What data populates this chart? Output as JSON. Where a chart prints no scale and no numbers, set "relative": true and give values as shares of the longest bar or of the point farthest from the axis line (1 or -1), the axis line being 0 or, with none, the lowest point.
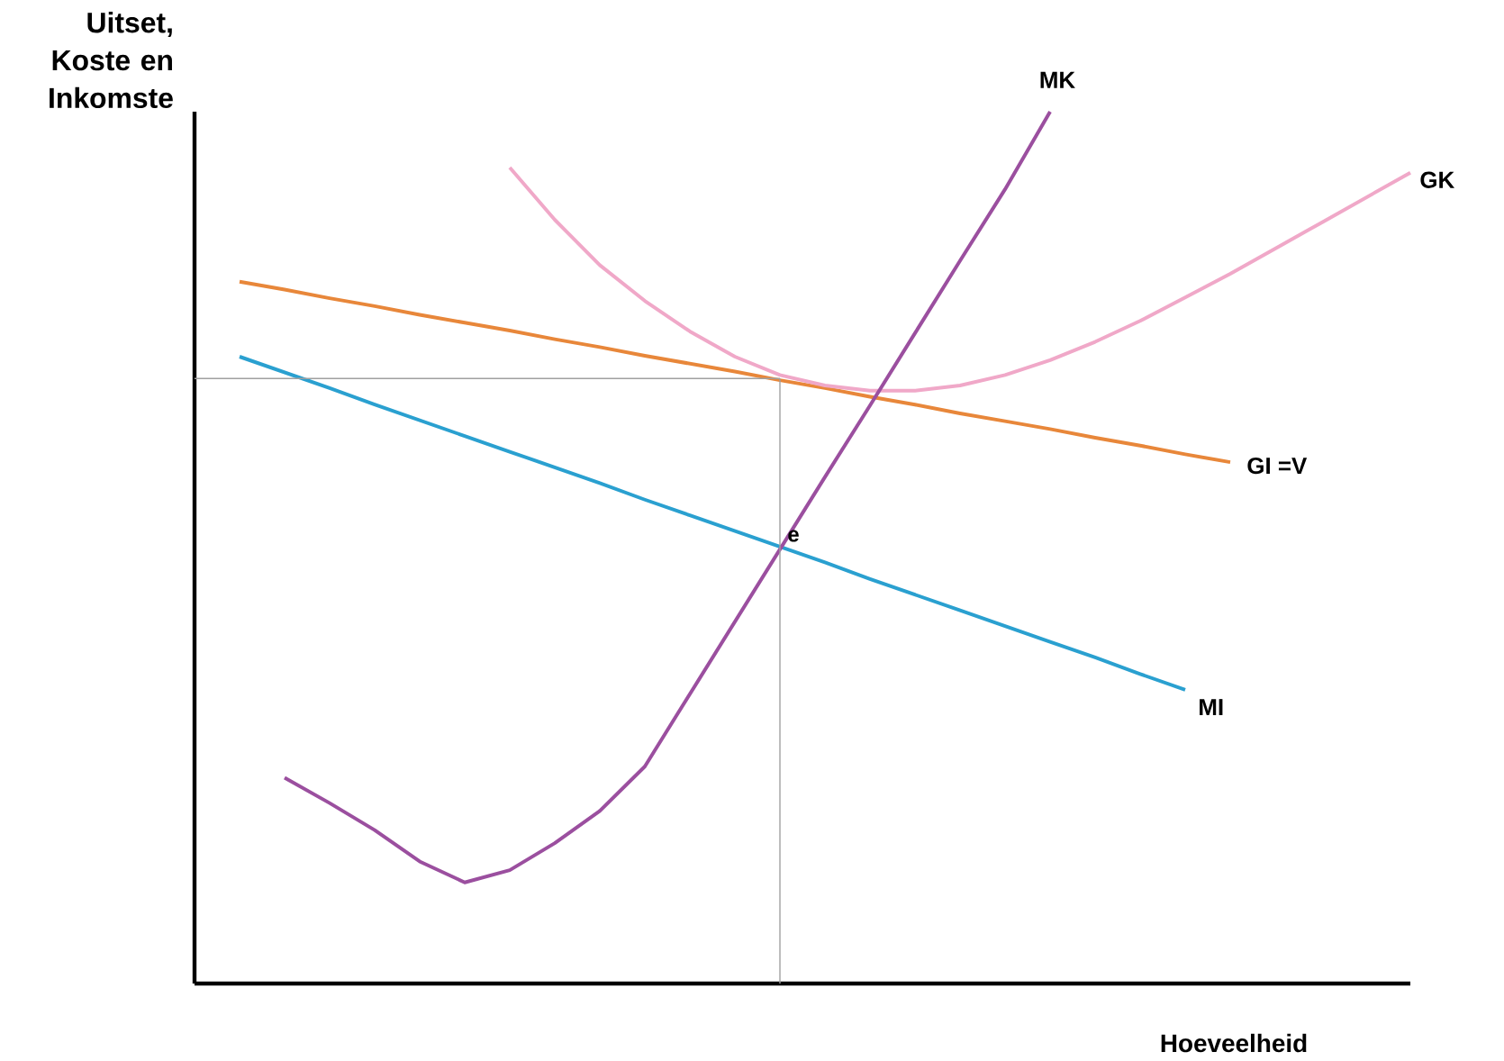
{
  "chart_data": {
    "type": "line",
    "relative": true,
    "ylabel": "Uitset, Koste en Inkomste",
    "xlabel": "Hoeveelheid",
    "annotations": [
      {
        "text": "e",
        "y": 0.498
      }
    ],
    "categories": [
      null,
      null,
      null,
      null,
      null,
      null,
      null,
      null,
      null,
      null,
      null,
      null,
      null,
      null,
      null,
      null,
      null,
      null,
      null,
      null,
      null,
      null,
      null,
      null,
      null,
      null,
      null,
      null
    ],
    "series": [
      {
        "name": "GI =V",
        "color": "#e8873a",
        "values": [
          null,
          0.805,
          0.796,
          0.786,
          0.777,
          0.767,
          0.758,
          0.749,
          0.739,
          0.73,
          0.72,
          0.711,
          0.702,
          0.692,
          0.683,
          0.673,
          0.664,
          0.654,
          0.645,
          0.636,
          0.626,
          0.617,
          0.607,
          0.598,
          null,
          null,
          null,
          null
        ]
      },
      {
        "name": "MI",
        "color": "#2aa0d0",
        "values": [
          null,
          0.719,
          0.701,
          0.683,
          0.664,
          0.646,
          0.628,
          0.61,
          0.592,
          0.574,
          0.555,
          0.537,
          0.519,
          0.501,
          0.483,
          0.464,
          0.446,
          0.428,
          0.41,
          0.392,
          0.374,
          0.355,
          0.337,
          null,
          null,
          null,
          null,
          null
        ]
      },
      {
        "name": "GK",
        "color": "#f0a8c8",
        "values": [
          null,
          null,
          null,
          null,
          null,
          null,
          null,
          0.936,
          0.876,
          0.824,
          0.783,
          0.748,
          0.719,
          0.698,
          0.686,
          0.68,
          0.68,
          0.686,
          0.698,
          0.715,
          0.736,
          0.76,
          0.787,
          0.814,
          0.843,
          0.872,
          0.901,
          0.93
        ]
      },
      {
        "name": "MK",
        "color": "#9b4f9f",
        "values": [
          null,
          null,
          0.236,
          0.207,
          0.176,
          0.14,
          0.116,
          0.13,
          0.161,
          0.198,
          0.249,
          0.332,
          0.415,
          0.498,
          0.581,
          0.663,
          0.746,
          0.829,
          0.911,
          1.0,
          null,
          null,
          null,
          null,
          null,
          null,
          null,
          null
        ]
      },
      {
        "color": "#a0a0a0",
        "values": [
          0.694,
          0.694,
          0.694,
          0.694,
          0.694,
          0.694,
          0.694,
          0.694,
          0.694,
          0.694,
          0.694,
          0.694,
          0.694,
          0.694,
          null,
          null,
          null,
          null,
          null,
          null,
          null,
          null,
          null,
          null,
          null,
          null,
          null,
          null
        ]
      }
    ]
  }
}
